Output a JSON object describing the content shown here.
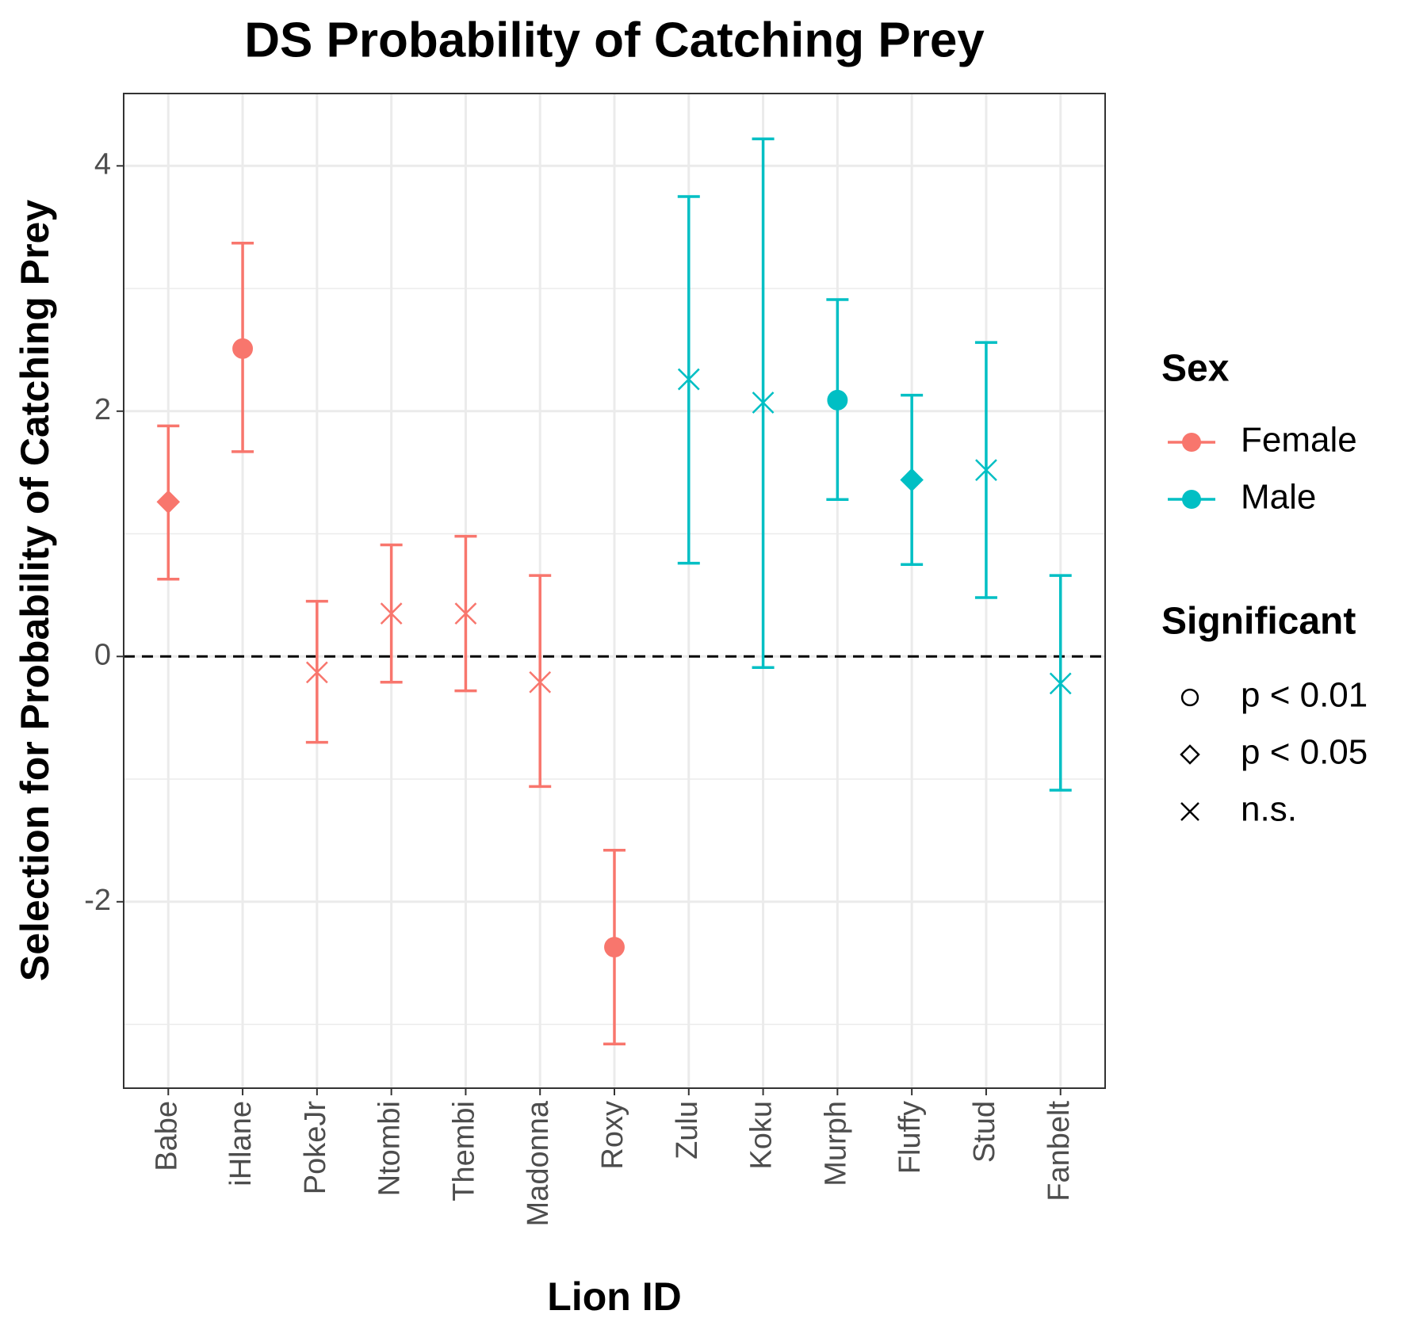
{
  "chart_data": {
    "type": "errorbar-point",
    "title": "DS Probability of Catching Prey",
    "x_label": "Lion ID",
    "y_label": "Selection for Probability of Catching Prey",
    "categories": [
      "Babe",
      "iHlane",
      "PokeJr",
      "Ntombi",
      "Thembi",
      "Madonna",
      "Roxy",
      "Zulu",
      "Koku",
      "Murph",
      "Fluffy",
      "Stud",
      "Fanbelt"
    ],
    "series": [
      {
        "name": "Female",
        "color": "#f8766d",
        "values": [
          1.26,
          2.51,
          -0.13,
          0.35,
          0.35,
          -0.21,
          -2.37,
          null,
          null,
          null,
          null,
          null,
          null
        ],
        "lower": [
          0.63,
          1.67,
          -0.7,
          -0.21,
          -0.28,
          -1.06,
          -3.16,
          null,
          null,
          null,
          null,
          null,
          null
        ],
        "upper": [
          1.88,
          3.37,
          0.45,
          0.91,
          0.98,
          0.66,
          -1.58,
          null,
          null,
          null,
          null,
          null,
          null
        ],
        "shapes": [
          "diamond",
          "circle",
          "cross",
          "cross",
          "cross",
          "cross",
          "circle",
          null,
          null,
          null,
          null,
          null,
          null
        ]
      },
      {
        "name": "Male",
        "color": "#00bfc4",
        "values": [
          null,
          null,
          null,
          null,
          null,
          null,
          null,
          2.26,
          2.07,
          2.09,
          1.44,
          1.52,
          -0.22
        ],
        "lower": [
          null,
          null,
          null,
          null,
          null,
          null,
          null,
          0.76,
          -0.09,
          1.28,
          0.75,
          0.48,
          -1.09
        ],
        "upper": [
          null,
          null,
          null,
          null,
          null,
          null,
          null,
          3.75,
          4.22,
          2.91,
          2.13,
          2.56,
          0.66
        ],
        "shapes": [
          null,
          null,
          null,
          null,
          null,
          null,
          null,
          "cross",
          "cross",
          "circle",
          "diamond",
          "cross",
          "cross"
        ]
      }
    ],
    "color_legend_title": "Sex",
    "shape_legend": {
      "title": "Significant",
      "items": [
        {
          "label": "p < 0.01",
          "shape": "circle"
        },
        {
          "label": "p < 0.05",
          "shape": "diamond"
        },
        {
          "label": "n.s.",
          "shape": "cross"
        }
      ]
    },
    "hline": 0,
    "ylim": [
      -3.52,
      4.59
    ],
    "yticks": [
      -2,
      0,
      2,
      4
    ],
    "grid": true,
    "minor_grid": true,
    "legend": "right"
  }
}
